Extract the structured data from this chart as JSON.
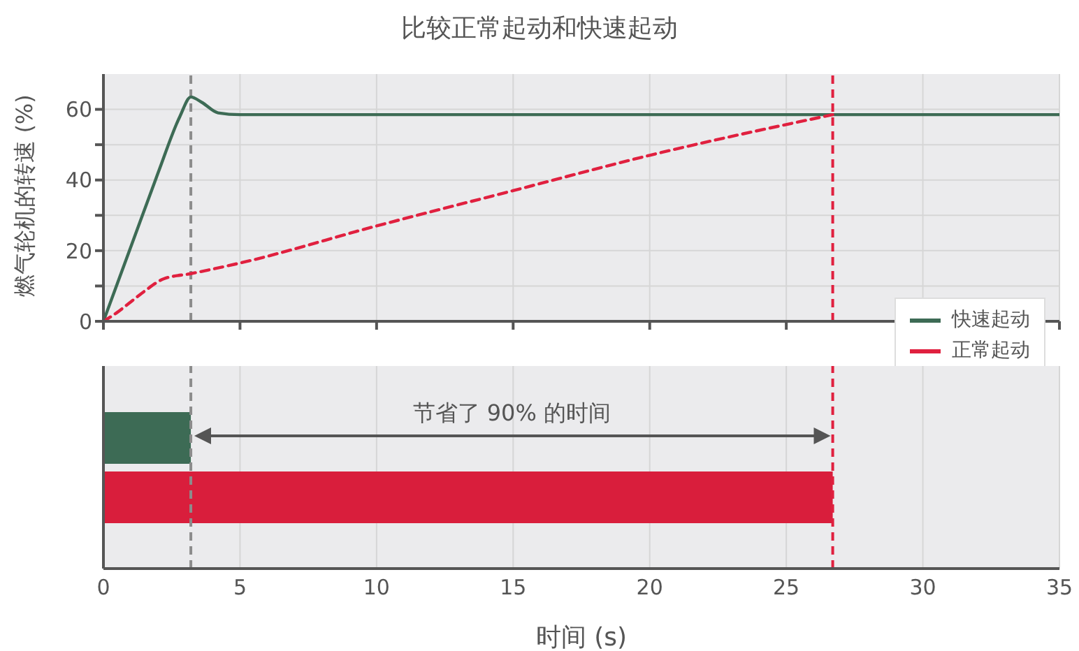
{
  "chart_data": [
    {
      "type": "line",
      "title": "比较正常起动和快速起动",
      "ylabel": "燃气轮机的转速 (%)",
      "xlim": [
        0,
        35
      ],
      "xticks": [
        {
          "value": 0,
          "label": null
        },
        {
          "value": 5,
          "label": null
        },
        {
          "value": 10,
          "label": null
        },
        {
          "value": 15,
          "label": null
        },
        {
          "value": 20,
          "label": null
        },
        {
          "value": 25,
          "label": null
        },
        {
          "value": 30,
          "label": null
        },
        {
          "value": 35,
          "label": null
        }
      ],
      "ylim": [
        0,
        70
      ],
      "yticks": [
        0,
        {
          "value": 10,
          "label": null
        },
        20,
        {
          "value": 30,
          "label": null
        },
        40,
        {
          "value": 50,
          "label": null
        },
        60
      ],
      "tick_labels": "y",
      "grid": true,
      "legend": "bottom right",
      "series": [
        {
          "name": "快速起动",
          "color": "#3d6b55",
          "line_style": "solid",
          "x": [
            0,
            1,
            2,
            2.8,
            3.2,
            3.6,
            4.2,
            5,
            35
          ],
          "values": [
            0,
            21,
            42,
            58,
            63.5,
            62,
            59,
            58.5,
            58.5
          ]
        },
        {
          "name": "正常起动",
          "color": "#e0203f",
          "line_style": "dashed",
          "x": [
            0,
            0.5,
            1,
            1.5,
            2.2,
            3.2,
            5,
            10,
            15,
            20,
            26.7
          ],
          "values": [
            0,
            2.5,
            5.5,
            8.5,
            12,
            13.5,
            16.5,
            27,
            37,
            47,
            58.5
          ]
        }
      ],
      "ref_lines": [
        {
          "axis": "x",
          "value": 3.2,
          "color": "#8c8c8c",
          "line_style": "dashed"
        },
        {
          "axis": "x",
          "value": 26.7,
          "color": "#e0203f",
          "line_style": "dashed"
        }
      ]
    },
    {
      "type": "bar",
      "orientation": "horizontal",
      "categories": [
        null,
        null
      ],
      "values": [
        3.2,
        26.7
      ],
      "colors": [
        "#3d6b55",
        "#d91e3c"
      ],
      "xlabel": "时间 (s)",
      "xlim": [
        0,
        35
      ],
      "xticks": [
        0,
        5,
        10,
        15,
        20,
        25,
        30,
        35
      ],
      "tick_labels": "x",
      "grid": "x",
      "ref_lines": [
        {
          "axis": "x",
          "value": 3.2,
          "color": "#8c8c8c",
          "line_style": "dashed"
        },
        {
          "axis": "x",
          "value": 26.7,
          "color": "#e0203f",
          "line_style": "dashed"
        }
      ],
      "annotations": [
        "节省了 90% 的时间"
      ]
    }
  ]
}
